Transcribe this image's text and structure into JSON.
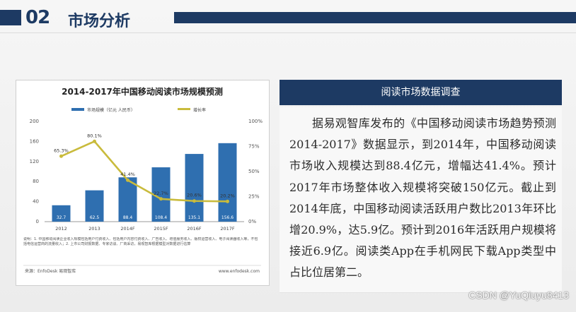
{
  "header": {
    "number": "02",
    "title": "市场分析"
  },
  "right_panel": {
    "title": "阅读市场数据调查",
    "body": "据易观智库发布的《中国移动阅读市场趋势预测2014-2017》数据显示，到2014年，中国移动阅读市场收入规模达到88.4亿元，增幅达41.4%。预计2017年市场整体收入规模将突破150亿元。截止到2014年底，中国移动阅读活跃用户数比2013年环比增20.9%，达5.9亿。预计到2016年活跃用户规模将接近6.9亿。阅读类App在手机网民下载App类型中占比位居第二。"
  },
  "chart_data": {
    "type": "bar",
    "title": "2014-2017年中国移动阅读市场规模预测",
    "categories": [
      "2012",
      "2013",
      "2014F",
      "2015F",
      "2016F",
      "2017F"
    ],
    "series": [
      {
        "name": "市场规模（亿元 人民币）",
        "type": "bar",
        "values": [
          32.7,
          62.5,
          88.4,
          108.4,
          135.1,
          156.6
        ],
        "color": "#2f6fb0"
      },
      {
        "name": "增长率",
        "type": "line",
        "values": [
          65.3,
          80.1,
          41.4,
          22.7,
          20.6,
          20.2
        ],
        "color": "#c9bb3c"
      }
    ],
    "bar_labels": [
      "32.7",
      "62.5",
      "88.4",
      "108.4",
      "135.1",
      "156.6"
    ],
    "line_labels": [
      "65.3%",
      "80.1%",
      "41.4%",
      "22.7%",
      "20.6%",
      "20.2%"
    ],
    "ylim_left": [
      0,
      200
    ],
    "yticks_left": [
      "0",
      "40",
      "80",
      "120",
      "160",
      "200"
    ],
    "ylim_right": [
      0,
      100
    ],
    "yticks_right": [
      "0%",
      "25%",
      "50%",
      "75%",
      "100%"
    ],
    "notes": "说明：1. 中国移动阅读企业收入规模包括用户付费收入、包括用户内容付费收入、广告收入、增值服务收入、版权运营收入、电子阅读器收入等，不包括电信运营商的流量收入；2. 上市公司财报数据、专家访谈、厂商采访，易观智库根据模型对数据进行估算",
    "source": "来源：EnfoDesk 易观智库",
    "site": "www.enfodesk.com"
  },
  "watermark": "CSDN @YuQiuyu8413"
}
